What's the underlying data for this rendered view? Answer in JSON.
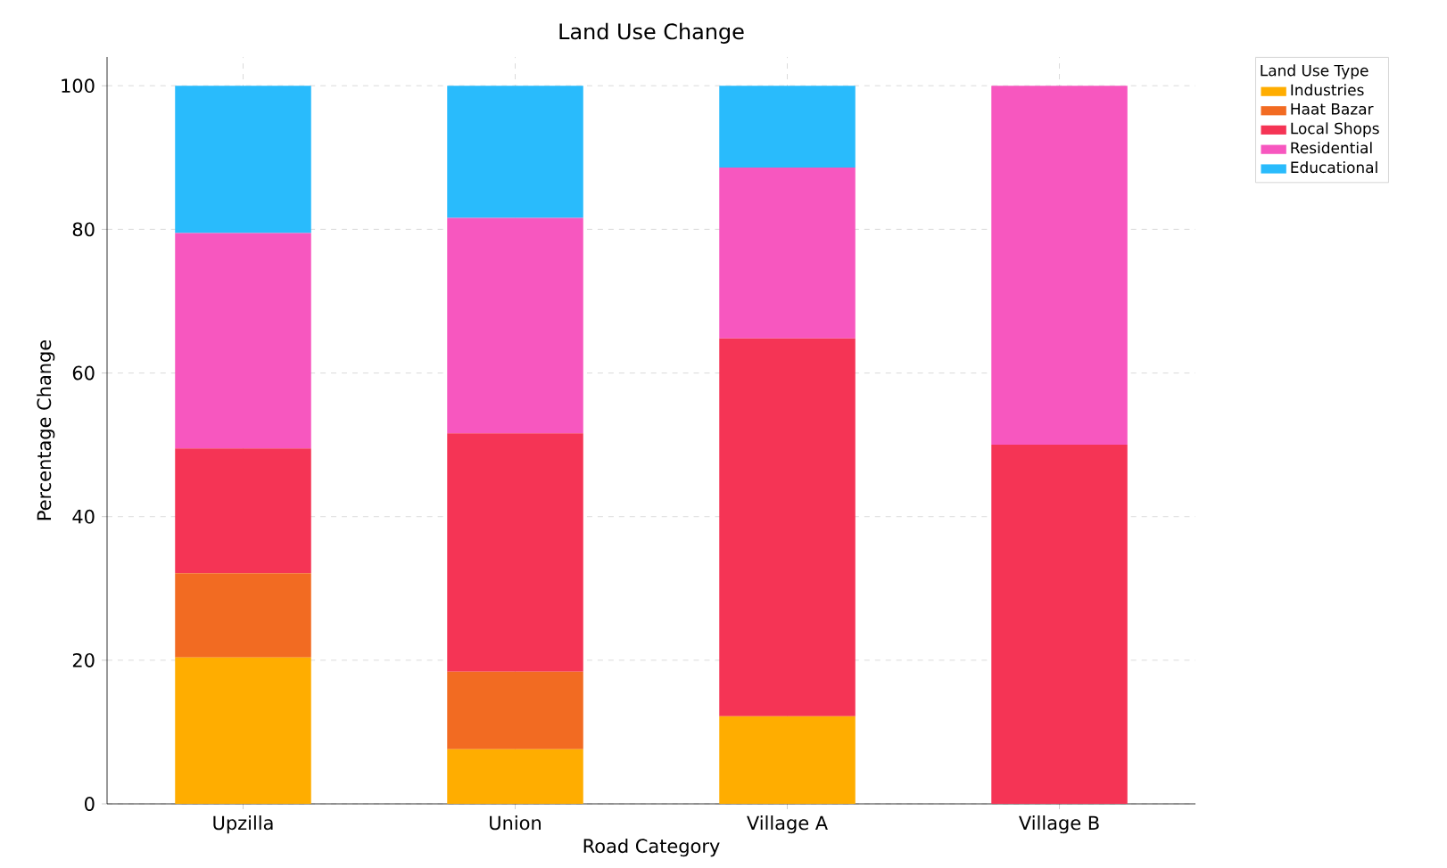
{
  "chart_data": {
    "type": "bar",
    "title": "Land Use Change",
    "xlabel": "Road Category",
    "ylabel": "Percentage Change",
    "legend_title": "Land Use Type",
    "categories": [
      "Upzilla",
      "Union",
      "Village A",
      "Village B"
    ],
    "series": [
      {
        "name": "Industries",
        "color": "#ffad00",
        "values": [
          20.4,
          7.6,
          12.2,
          0
        ]
      },
      {
        "name": "Haat Bazar",
        "color": "#f26b22",
        "values": [
          11.7,
          10.8,
          0,
          0
        ]
      },
      {
        "name": "Local Shops",
        "color": "#f53455",
        "values": [
          17.4,
          33.2,
          52.6,
          50
        ]
      },
      {
        "name": "Residential",
        "color": "#f757bf",
        "values": [
          30.0,
          30.0,
          23.8,
          50
        ]
      },
      {
        "name": "Educational",
        "color": "#29bbfc",
        "values": [
          20.5,
          18.4,
          11.4,
          0
        ]
      }
    ],
    "stacked": true,
    "ylim": [
      0,
      104
    ],
    "yticks": [
      0,
      20,
      40,
      60,
      80,
      100
    ],
    "grid": true,
    "legend": "top right"
  }
}
